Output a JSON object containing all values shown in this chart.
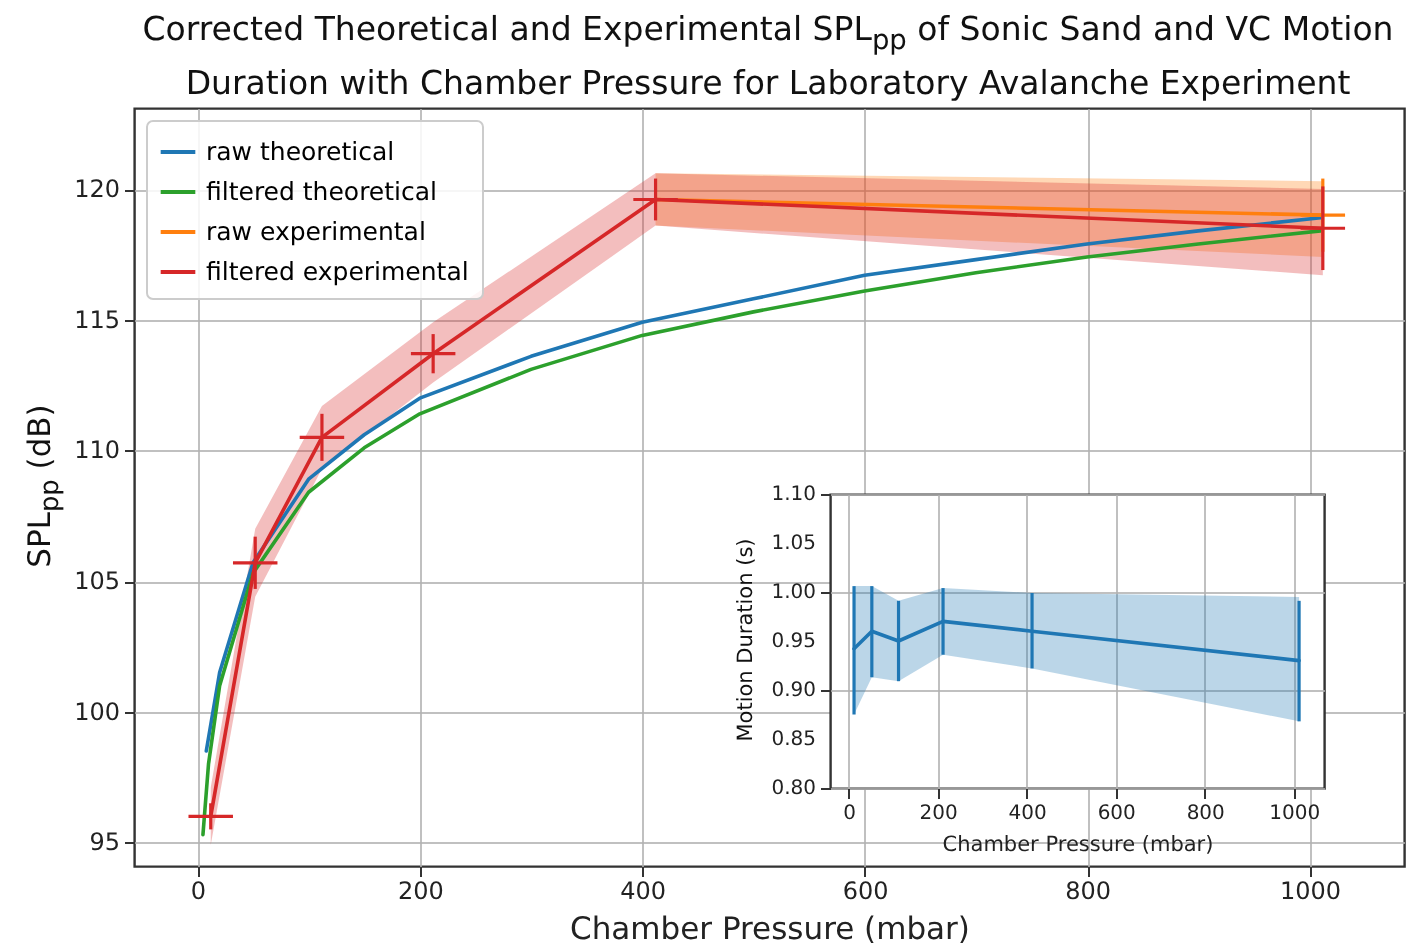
{
  "chart_data": [
    {
      "type": "line",
      "title": "Corrected Theoretical and Experimental SPL$_{pp}$ of Sonic Sand and VC Motion Duration with Chamber Pressure for Laboratory Avalanche Experiment",
      "xlabel": "Chamber Pressure (mbar)",
      "ylabel": "SPL$_{pp}$ (dB)",
      "xlim": [
        -57,
        1085
      ],
      "ylim": [
        94.1,
        123.1
      ],
      "xticks": [
        0,
        200,
        400,
        600,
        800,
        1000
      ],
      "yticks": [
        95,
        100,
        105,
        110,
        115,
        120
      ],
      "grid": true,
      "legend": "top left",
      "series": [
        {
          "name": "raw theoretical",
          "color": "#1f77b4",
          "x": [
            8,
            20,
            50,
            100,
            150,
            200,
            300,
            400,
            500,
            600,
            700,
            800,
            900,
            1010
          ],
          "values": [
            98.5,
            101.5,
            105.7,
            108.9,
            110.6,
            112.0,
            113.6,
            114.9,
            115.8,
            116.7,
            117.3,
            117.9,
            118.4,
            118.9
          ]
        },
        {
          "name": "filtered theoretical",
          "color": "#2ca02c",
          "x": [
            5,
            10,
            20,
            50,
            100,
            150,
            200,
            300,
            400,
            500,
            600,
            700,
            800,
            900,
            1010
          ],
          "values": [
            95.3,
            98.0,
            101.0,
            105.3,
            108.4,
            110.1,
            111.4,
            113.1,
            114.4,
            115.3,
            116.1,
            116.8,
            117.4,
            117.9,
            118.4
          ]
        },
        {
          "name": "raw experimental",
          "color": "#ff7f0e",
          "x": [
            412,
            1012
          ],
          "values": [
            119.6,
            119.0
          ],
          "errors": [
            null,
            1.4
          ],
          "xerrors": [
            null,
            20
          ],
          "lower": [
            118.6,
            117.4
          ],
          "upper": [
            120.6,
            120.3
          ]
        },
        {
          "name": "filtered experimental",
          "color": "#d62728",
          "x": [
            12,
            52,
            112,
            212,
            412,
            1012
          ],
          "values": [
            96.0,
            105.7,
            110.5,
            113.7,
            119.6,
            118.5
          ],
          "errors": [
            0.5,
            1.0,
            0.9,
            0.75,
            0.8,
            1.6
          ],
          "xerrors": [
            20,
            20,
            20,
            20,
            20,
            20
          ],
          "lower": [
            94.9,
            104.4,
            109.3,
            112.6,
            118.6,
            116.7
          ],
          "upper": [
            97.1,
            107.0,
            111.7,
            114.9,
            120.6,
            120.0
          ]
        }
      ]
    },
    {
      "type": "line",
      "xlabel": "Chamber Pressure (mbar)",
      "ylabel": "Motion Duration (s)",
      "xlim": [
        -42,
        1068
      ],
      "ylim": [
        0.8,
        1.1
      ],
      "xticks": [
        0,
        200,
        400,
        600,
        800,
        1000
      ],
      "yticks": [
        {
          "value": 0.8,
          "label": "0.80"
        },
        0.85,
        {
          "value": 0.9,
          "label": "0.90"
        },
        0.95,
        {
          "value": 1.0,
          "label": "1.00"
        },
        1.05,
        {
          "value": 1.1,
          "label": "1.10"
        }
      ],
      "grid": true,
      "series": [
        {
          "color": "#1f77b4",
          "x": [
            12,
            52,
            112,
            212,
            412,
            1012
          ],
          "values": [
            0.942,
            0.96,
            0.95,
            0.97,
            0.96,
            0.93
          ],
          "errors": [
            [
              0.875,
              1.006
            ],
            [
              0.913,
              1.006
            ],
            [
              0.909,
              0.991
            ],
            [
              0.936,
              1.004
            ],
            [
              0.922,
              0.999
            ],
            [
              0.868,
              0.991
            ]
          ],
          "lower": [
            0.875,
            0.913,
            0.909,
            0.936,
            0.922,
            0.868
          ],
          "upper": [
            1.006,
            1.006,
            0.991,
            1.004,
            0.999,
            0.995
          ]
        }
      ]
    }
  ]
}
